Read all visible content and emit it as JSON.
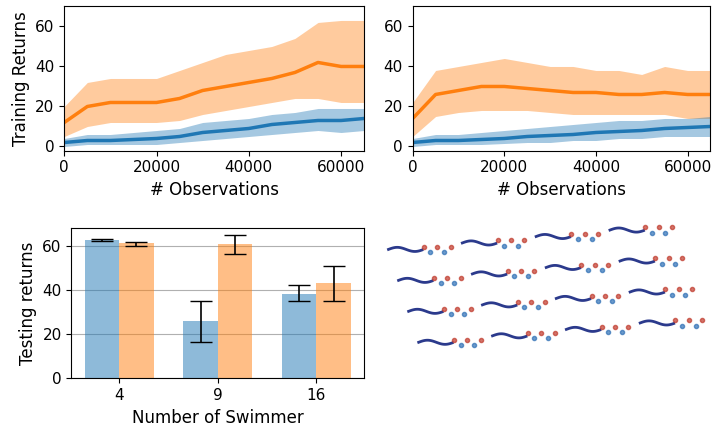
{
  "chart_data": [
    {
      "type": "line",
      "ylabel": "Training Returns",
      "xlabel": "# Observations",
      "x": [
        0,
        5000,
        10000,
        15000,
        20000,
        25000,
        30000,
        35000,
        40000,
        45000,
        50000,
        55000,
        60000,
        65000
      ],
      "xlim": [
        0,
        65000
      ],
      "xticks": [
        0,
        20000,
        40000,
        60000
      ],
      "ylim": [
        -2,
        70
      ],
      "yticks": [
        0,
        20,
        40,
        60
      ],
      "series": [
        {
          "color": "#ff7f0e",
          "values": [
            12,
            20,
            22,
            22,
            22,
            24,
            28,
            30,
            32,
            34,
            37,
            42,
            40,
            40
          ],
          "lower": [
            5,
            10,
            12,
            12,
            12,
            13,
            16,
            18,
            20,
            22,
            24,
            24,
            22,
            22
          ],
          "upper": [
            20,
            32,
            34,
            34,
            34,
            38,
            42,
            46,
            48,
            50,
            54,
            62,
            63,
            63
          ]
        },
        {
          "color": "#1f77b4",
          "values": [
            2,
            3,
            3,
            3.5,
            4,
            5,
            7,
            8,
            9,
            11,
            12,
            13,
            13,
            14
          ],
          "lower": [
            0,
            1,
            1,
            1,
            1,
            2,
            3,
            4,
            5,
            6,
            7,
            8,
            7,
            8
          ],
          "upper": [
            4,
            6,
            6,
            7,
            8,
            9,
            12,
            13,
            14,
            16,
            17,
            19,
            19,
            19
          ]
        }
      ]
    },
    {
      "type": "line",
      "xlabel": "# Observations",
      "x": [
        0,
        5000,
        10000,
        15000,
        20000,
        25000,
        30000,
        35000,
        40000,
        45000,
        50000,
        55000,
        60000,
        65000
      ],
      "xlim": [
        0,
        65000
      ],
      "xticks": [
        0,
        20000,
        40000,
        60000
      ],
      "ylim": [
        -2,
        70
      ],
      "yticks": [
        0,
        20,
        40,
        60
      ],
      "series": [
        {
          "color": "#ff7f0e",
          "values": [
            14,
            26,
            28,
            30,
            30,
            29,
            28,
            27,
            27,
            26,
            26,
            27,
            26,
            26
          ],
          "lower": [
            5,
            15,
            17,
            18,
            18,
            18,
            17,
            16,
            16,
            16,
            16,
            16,
            14,
            14
          ],
          "upper": [
            22,
            38,
            40,
            42,
            44,
            42,
            40,
            40,
            38,
            38,
            36,
            40,
            38,
            38
          ]
        },
        {
          "color": "#1f77b4",
          "values": [
            2,
            3,
            3,
            3.5,
            4,
            5,
            5.5,
            6,
            7,
            7.5,
            8,
            9,
            9.5,
            10
          ],
          "lower": [
            0,
            1,
            1,
            1,
            1.5,
            2,
            2,
            3,
            3,
            4,
            4,
            5,
            5,
            5
          ],
          "upper": [
            4,
            6,
            6,
            7,
            8,
            9,
            10,
            11,
            12,
            13,
            13,
            14,
            14,
            15
          ]
        }
      ]
    },
    {
      "type": "bar",
      "xlabel": "Number of Swimmer",
      "ylabel": "Testing returns",
      "categories": [
        "4",
        "9",
        "16"
      ],
      "ylim": [
        0,
        68
      ],
      "yticks": [
        0,
        20,
        40,
        60
      ],
      "grid": true,
      "series": [
        {
          "color": "#1f77b4",
          "values": [
            62.5,
            26,
            38
          ],
          "lower": [
            62.2,
            16.5,
            35
          ],
          "upper": [
            62.8,
            35,
            42
          ]
        },
        {
          "color": "#ff7f0e",
          "values": [
            61,
            60.5,
            43
          ],
          "lower": [
            60,
            56,
            35
          ],
          "upper": [
            61.5,
            65,
            51
          ]
        }
      ]
    }
  ]
}
